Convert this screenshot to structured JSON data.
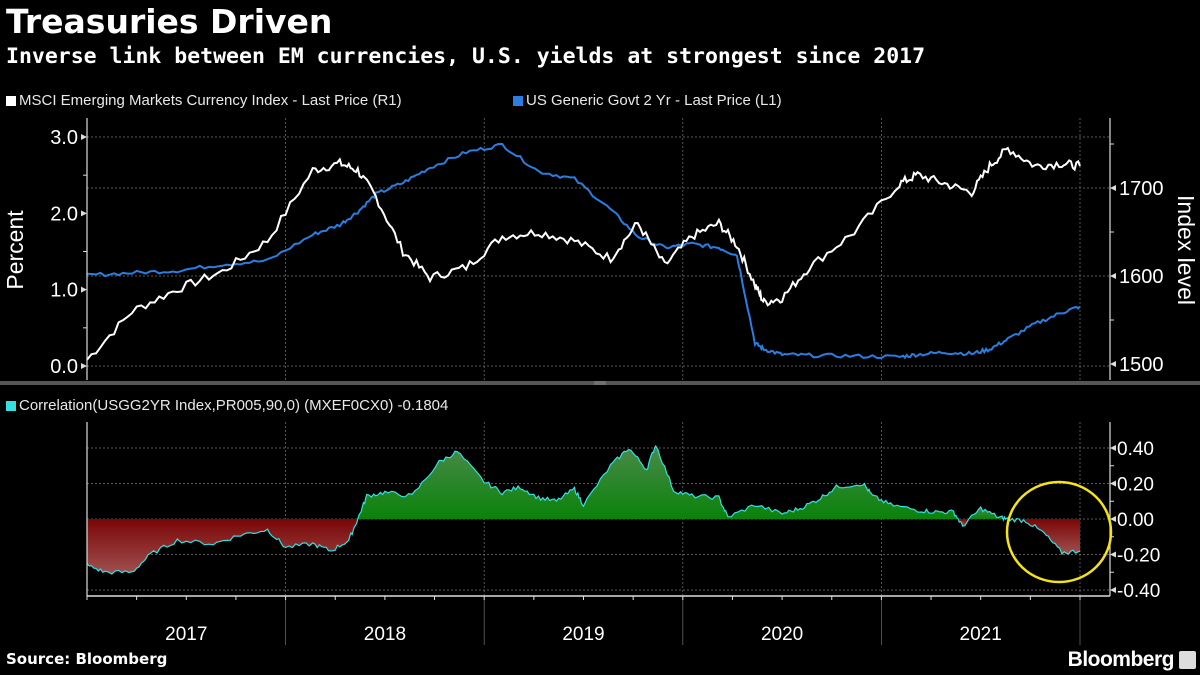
{
  "header": {
    "title": "Treasuries Driven",
    "subtitle": "Inverse link between EM currencies, U.S. yields at strongest since 2017"
  },
  "footer": {
    "source": "Source: Bloomberg",
    "brand": "Bloomberg"
  },
  "colors": {
    "msci_line": "#ffffff",
    "us2yr_line": "#2a7de1",
    "correlation_line": "#33e0e0",
    "positive_fill": "#0a8a0a",
    "negative_fill": "#8b0a0a",
    "highlight_ellipse": "#f5e31a"
  },
  "chart_data": [
    {
      "type": "line",
      "panel": "top",
      "legend_position": "top-left",
      "legend": [
        {
          "label": "MSCI Emerging Markets Currency Index - Last Price (R1)",
          "color": "#ffffff",
          "axis": "right"
        },
        {
          "label": "US Generic Govt 2 Yr - Last Price (L1)",
          "color": "#2a7de1",
          "axis": "left"
        }
      ],
      "ylabel_left": "Percent",
      "ylabel_right": "Index level",
      "ylim_left": [
        -0.1,
        3.2
      ],
      "yticks_left": [
        "0.0",
        "1.0",
        "2.0",
        "3.0"
      ],
      "ylim_right": [
        1497,
        1768
      ],
      "yticks_right": [
        "1500",
        "1600",
        "1700"
      ],
      "grid": true,
      "x": [
        2016.5,
        2016.75,
        2017.0,
        2017.25,
        2017.5,
        2017.75,
        2017.9,
        2018.0,
        2018.1,
        2018.25,
        2018.4,
        2018.6,
        2018.8,
        2019.0,
        2019.2,
        2019.4,
        2019.55,
        2019.7,
        2019.85,
        2020.0,
        2020.1,
        2020.2,
        2020.25,
        2020.35,
        2020.5,
        2020.75,
        2021.0,
        2021.1,
        2021.25,
        2021.4,
        2021.5,
        2021.6,
        2021.75,
        2021.9,
        2022.0
      ],
      "series": [
        {
          "name": "MSCI Emerging Markets Currency Index",
          "axis": "right",
          "values": [
            1505,
            1560,
            1585,
            1605,
            1640,
            1720,
            1728,
            1720,
            1690,
            1628,
            1598,
            1610,
            1645,
            1650,
            1640,
            1620,
            1660,
            1612,
            1645,
            1660,
            1635,
            1590,
            1570,
            1575,
            1610,
            1650,
            1705,
            1715,
            1705,
            1695,
            1725,
            1745,
            1725,
            1728,
            1725
          ]
        },
        {
          "name": "US Generic Govt 2 Yr",
          "axis": "left",
          "values": [
            1.19,
            1.22,
            1.25,
            1.33,
            1.38,
            1.72,
            1.85,
            2.02,
            2.25,
            2.4,
            2.6,
            2.8,
            2.9,
            2.55,
            2.45,
            2.05,
            1.7,
            1.55,
            1.6,
            1.55,
            1.45,
            0.3,
            0.22,
            0.15,
            0.14,
            0.13,
            0.12,
            0.15,
            0.18,
            0.16,
            0.22,
            0.35,
            0.55,
            0.7,
            0.78
          ]
        }
      ]
    },
    {
      "type": "area",
      "panel": "bottom",
      "legend_position": "top-left",
      "legend": [
        {
          "label": "Correlation(USGG2YR Index,PR005,90,0) (MXEF0CX0) -0.1804",
          "color": "#33e0e0"
        }
      ],
      "ylim": [
        -0.45,
        0.5
      ],
      "yticks": [
        "0.40",
        "0.20",
        "0.00",
        "-0.20",
        "-0.40"
      ],
      "grid": true,
      "x": [
        2016.5,
        2016.6,
        2016.75,
        2016.85,
        2017.0,
        2017.2,
        2017.35,
        2017.5,
        2017.6,
        2017.75,
        2017.85,
        2017.95,
        2018.0,
        2018.05,
        2018.15,
        2018.3,
        2018.45,
        2018.55,
        2018.7,
        2018.8,
        2018.9,
        2019.0,
        2019.1,
        2019.2,
        2019.25,
        2019.4,
        2019.5,
        2019.6,
        2019.65,
        2019.75,
        2019.85,
        2020.0,
        2020.05,
        2020.2,
        2020.35,
        2020.45,
        2020.55,
        2020.65,
        2020.8,
        2020.85,
        2020.95,
        2021.1,
        2021.2,
        2021.3,
        2021.35,
        2021.45,
        2021.55,
        2021.6,
        2021.7,
        2021.8,
        2021.9,
        2022.0
      ],
      "values": [
        -0.26,
        -0.3,
        -0.3,
        -0.2,
        -0.12,
        -0.14,
        -0.09,
        -0.06,
        -0.16,
        -0.14,
        -0.18,
        -0.12,
        0.0,
        0.13,
        0.15,
        0.13,
        0.32,
        0.38,
        0.21,
        0.15,
        0.18,
        0.12,
        0.1,
        0.17,
        0.08,
        0.3,
        0.4,
        0.28,
        0.42,
        0.16,
        0.13,
        0.12,
        0.01,
        0.08,
        0.03,
        0.06,
        0.11,
        0.18,
        0.2,
        0.13,
        0.08,
        0.05,
        0.04,
        0.04,
        -0.04,
        0.06,
        0.01,
        0.0,
        -0.01,
        -0.08,
        -0.19,
        -0.18
      ],
      "annotations": [
        {
          "type": "ellipse",
          "description": "yellow circle highlighting recent negative correlation",
          "x_range": [
            2021.6,
            2022.1
          ],
          "y_range": [
            -0.35,
            0.2
          ]
        }
      ]
    }
  ],
  "x_axis": {
    "tick_labels": [
      "2017",
      "2018",
      "2019",
      "2020",
      "2021"
    ],
    "range": [
      2016.5,
      2022.0
    ]
  }
}
